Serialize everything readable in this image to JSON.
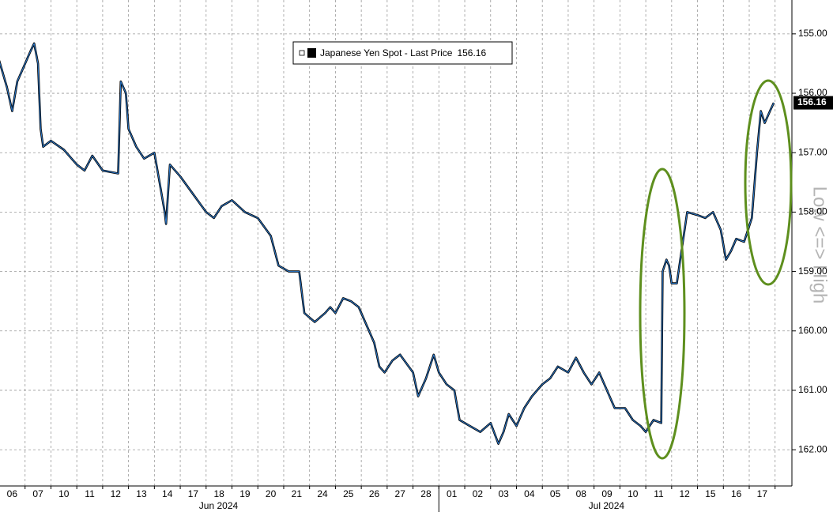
{
  "chart_data": {
    "type": "line",
    "inverted": true,
    "grid": true,
    "xlim": [
      0,
      30.65
    ],
    "ylim": [
      154.43,
      162.61
    ],
    "yticks": [
      {
        "value": 155,
        "label": "155.00"
      },
      {
        "value": 156,
        "label": "156.00"
      },
      {
        "value": 157,
        "label": "157.00"
      },
      {
        "value": 158,
        "label": "158.00"
      },
      {
        "value": 159,
        "label": "159.00"
      },
      {
        "value": 160,
        "label": "160.00"
      },
      {
        "value": 161,
        "label": "161.00"
      },
      {
        "value": 162,
        "label": "162.00"
      }
    ],
    "xticks": [
      {
        "value": 0.5,
        "label": "06"
      },
      {
        "value": 1.5,
        "label": "07"
      },
      {
        "value": 2.5,
        "label": "10"
      },
      {
        "value": 3.5,
        "label": "11"
      },
      {
        "value": 4.5,
        "label": "12"
      },
      {
        "value": 5.5,
        "label": "13"
      },
      {
        "value": 6.5,
        "label": "14"
      },
      {
        "value": 7.5,
        "label": "17"
      },
      {
        "value": 8.5,
        "label": "18"
      },
      {
        "value": 9.5,
        "label": "19"
      },
      {
        "value": 10.5,
        "label": "20"
      },
      {
        "value": 11.5,
        "label": "21"
      },
      {
        "value": 12.5,
        "label": "24"
      },
      {
        "value": 13.5,
        "label": "25"
      },
      {
        "value": 14.5,
        "label": "26"
      },
      {
        "value": 15.5,
        "label": "27"
      },
      {
        "value": 16.5,
        "label": "28"
      },
      {
        "value": 17.5,
        "label": "01"
      },
      {
        "value": 18.5,
        "label": "02"
      },
      {
        "value": 19.5,
        "label": "03"
      },
      {
        "value": 20.5,
        "label": "04"
      },
      {
        "value": 21.5,
        "label": "05"
      },
      {
        "value": 22.5,
        "label": "08"
      },
      {
        "value": 23.5,
        "label": "09"
      },
      {
        "value": 24.5,
        "label": "10"
      },
      {
        "value": 25.5,
        "label": "11"
      },
      {
        "value": 26.5,
        "label": "12"
      },
      {
        "value": 27.5,
        "label": "15"
      },
      {
        "value": 28.5,
        "label": "16"
      },
      {
        "value": 29.5,
        "label": "17"
      }
    ],
    "month_labels": [
      {
        "value": 8.48,
        "label": "Jun 2024"
      },
      {
        "value": 23.48,
        "label": "Jul 2024"
      }
    ],
    "month_divider": 17,
    "y_label": "Low <=> High",
    "last_price": 156.16,
    "x": [
      0.0,
      0.3,
      0.5,
      0.7,
      0.9,
      1.2,
      1.35,
      1.5,
      1.6,
      1.7,
      2.0,
      2.5,
      3.0,
      3.3,
      3.6,
      4.0,
      4.6,
      4.7,
      4.9,
      5.0,
      5.3,
      5.6,
      6.0,
      6.2,
      6.4,
      6.45,
      6.6,
      7.0,
      7.5,
      8.0,
      8.3,
      8.6,
      9.0,
      9.5,
      10.0,
      10.5,
      10.8,
      11.2,
      11.6,
      11.8,
      12.2,
      12.6,
      12.8,
      13.0,
      13.3,
      13.6,
      13.9,
      14.2,
      14.5,
      14.7,
      14.9,
      15.2,
      15.5,
      16.0,
      16.2,
      16.5,
      16.8,
      17.0,
      17.3,
      17.6,
      17.8,
      18.2,
      18.6,
      19.0,
      19.3,
      19.5,
      19.7,
      20.0,
      20.3,
      20.6,
      21.0,
      21.3,
      21.6,
      22.0,
      22.3,
      22.6,
      22.9,
      23.2,
      23.5,
      23.8,
      24.2,
      24.5,
      24.8,
      25.0,
      25.3,
      25.6,
      25.65,
      25.8,
      25.9,
      26.0,
      26.2,
      26.4,
      26.6,
      27.0,
      27.3,
      27.6,
      27.9,
      28.1,
      28.3,
      28.5,
      28.8,
      29.1,
      29.3,
      29.45,
      29.6,
      29.8,
      29.95
    ],
    "series": [
      {
        "name": "Japanese Yen Spot - Last Price",
        "color": "#2b7bd0",
        "values": [
          155.45,
          155.9,
          156.3,
          155.8,
          155.6,
          155.3,
          155.16,
          155.5,
          156.6,
          156.9,
          156.8,
          156.95,
          157.2,
          157.3,
          157.05,
          157.3,
          157.35,
          155.8,
          156.0,
          156.6,
          156.9,
          157.1,
          157.0,
          157.5,
          158.0,
          158.2,
          157.2,
          157.4,
          157.7,
          158.0,
          158.1,
          157.9,
          157.8,
          158.0,
          158.1,
          158.4,
          158.9,
          159.0,
          159.0,
          159.7,
          159.85,
          159.7,
          159.6,
          159.7,
          159.45,
          159.5,
          159.6,
          159.9,
          160.2,
          160.6,
          160.7,
          160.5,
          160.4,
          160.7,
          161.1,
          160.8,
          160.4,
          160.7,
          160.9,
          161.0,
          161.5,
          161.6,
          161.7,
          161.55,
          161.9,
          161.7,
          161.4,
          161.6,
          161.3,
          161.1,
          160.9,
          160.8,
          160.6,
          160.7,
          160.45,
          160.7,
          160.9,
          160.7,
          161.0,
          161.3,
          161.3,
          161.5,
          161.6,
          161.7,
          161.5,
          161.55,
          159.0,
          158.8,
          158.9,
          159.2,
          159.2,
          158.6,
          158.0,
          158.05,
          158.1,
          158.0,
          158.3,
          158.8,
          158.65,
          158.45,
          158.5,
          158.1,
          157.0,
          156.3,
          156.5,
          156.3,
          156.16
        ]
      }
    ]
  }
}
